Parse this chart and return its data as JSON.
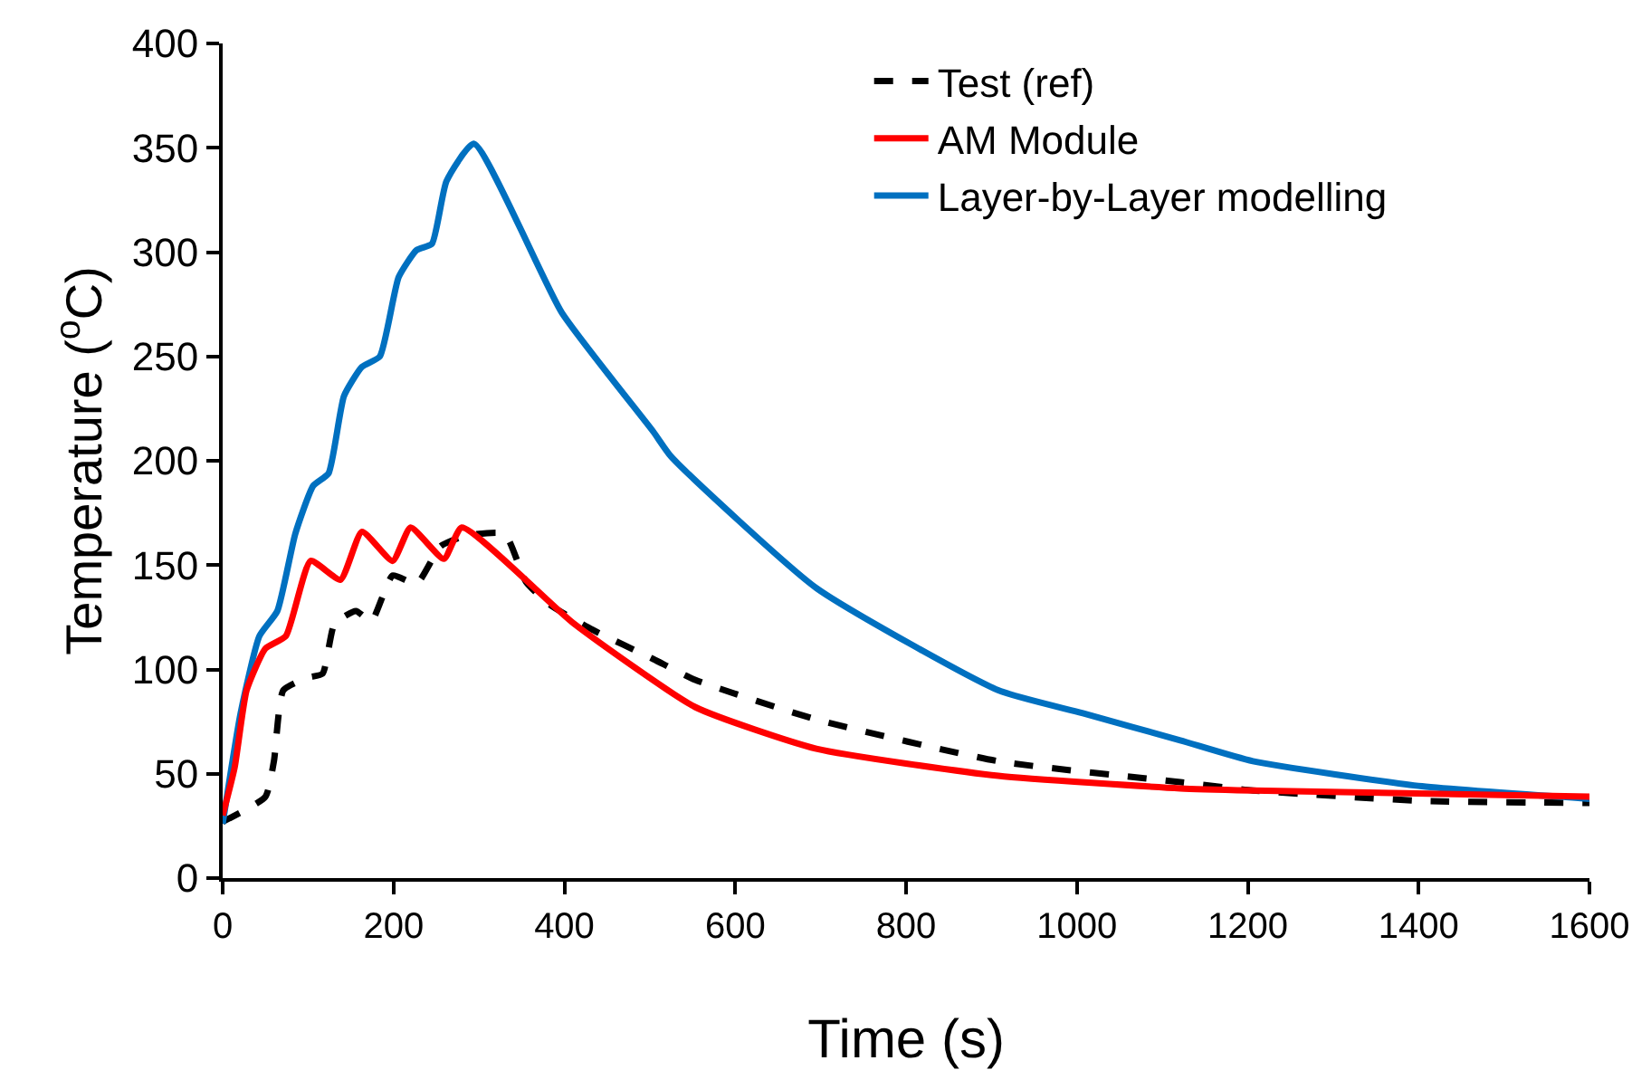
{
  "chart_data": {
    "type": "line",
    "xlabel": "Time (s)",
    "ylabel": "Temperature ($^{o}$C)",
    "xlim": [
      0,
      1600
    ],
    "xticks": [
      0,
      200,
      400,
      600,
      800,
      1000,
      1200,
      1400,
      1600
    ],
    "ylim": [
      0,
      400
    ],
    "yticks": [
      0,
      50,
      100,
      150,
      200,
      250,
      300,
      350,
      400
    ],
    "grid": false,
    "legend": "top right",
    "marker": "none",
    "series": [
      {
        "name": "Test (ref)",
        "color": "#000000",
        "line_style": "dashed",
        "x": [
          0,
          50,
          60,
          71,
          99,
          117,
          131,
          156,
          174,
          199,
          227,
          255,
          284,
          330,
          355,
          383,
          433,
          504,
          553,
          695,
          908,
          1121,
          1206,
          1404,
          1600
        ],
        "values": [
          27,
          39,
          56,
          90,
          96,
          98,
          122,
          128,
          123,
          145,
          141,
          159,
          164,
          165,
          142,
          131,
          119,
          105,
          95,
          76,
          56,
          46,
          42,
          37,
          36
        ]
      },
      {
        "name": "AM Module",
        "color": "#ff0000",
        "line_style": "solid",
        "x": [
          0,
          14,
          28,
          50,
          74,
          103,
          138,
          163,
          199,
          220,
          259,
          280,
          411,
          553,
          695,
          908,
          1121,
          1206,
          1600
        ],
        "values": [
          30,
          53,
          90,
          110,
          116,
          152,
          143,
          166,
          152,
          168,
          153,
          168,
          122,
          82,
          62,
          49,
          43,
          42,
          39
        ]
      },
      {
        "name": "Layer-by-Layer modelling",
        "color": "#0070c0",
        "line_style": "solid",
        "x": [
          0,
          21,
          43,
          64,
          85,
          106,
          124,
          142,
          163,
          184,
          206,
          227,
          245,
          262,
          294,
          397,
          504,
          525,
          695,
          908,
          1007,
          1121,
          1206,
          1404,
          1600
        ],
        "values": [
          26,
          79,
          116,
          128,
          165,
          188,
          194,
          231,
          245,
          250,
          288,
          301,
          304,
          334,
          352,
          271,
          214,
          202,
          139,
          90,
          79,
          66,
          56,
          44,
          38
        ]
      }
    ]
  }
}
